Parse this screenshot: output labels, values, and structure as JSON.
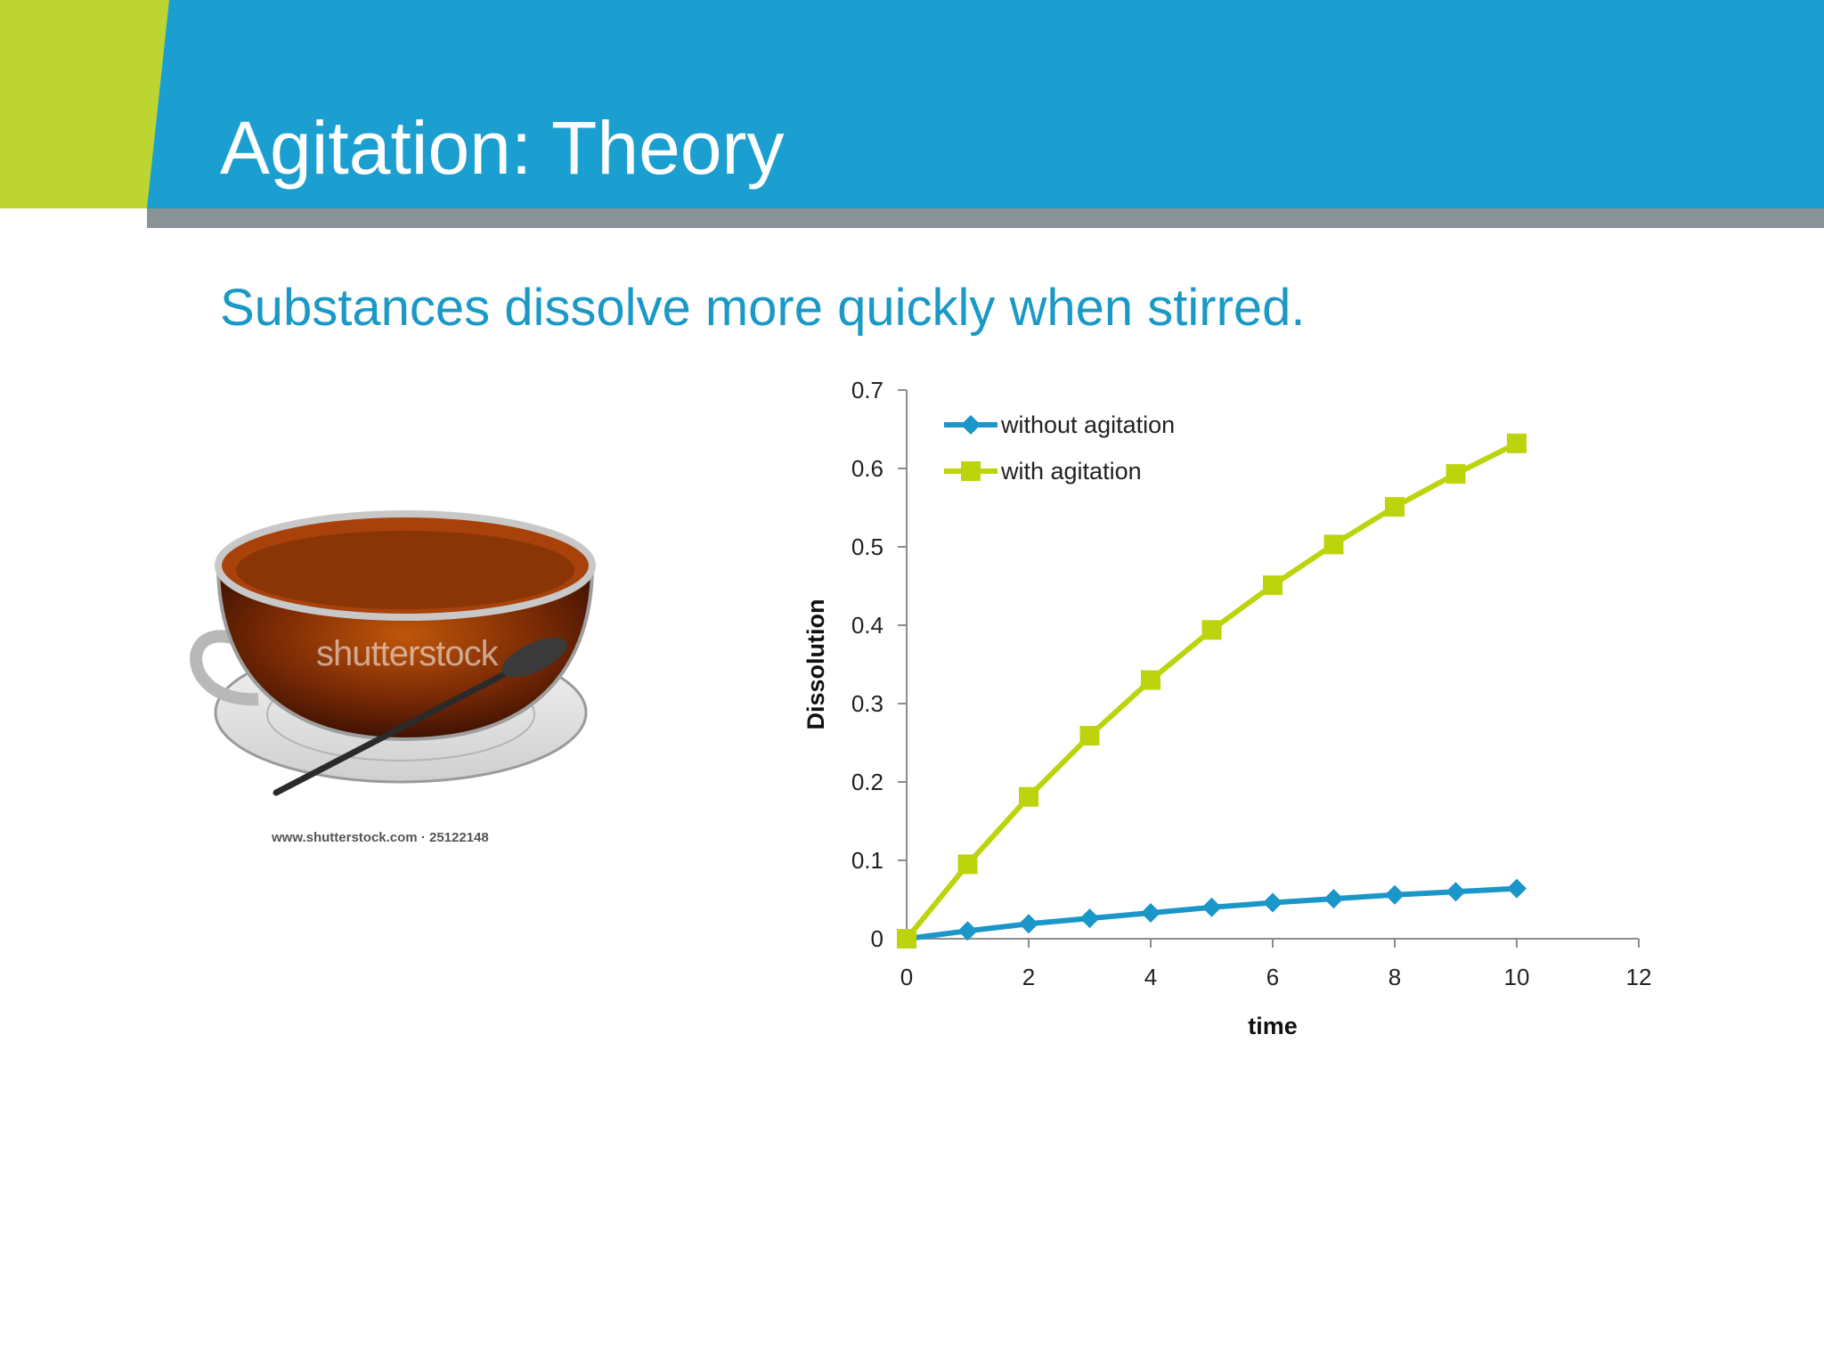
{
  "slide": {
    "title": "Agitation: Theory",
    "subtitle": "Substances dissolve more quickly when stirred."
  },
  "image": {
    "description_icon": "teacup-with-spoon-photo",
    "watermark": "shutterstock",
    "caption": "www.shutterstock.com · 25122148"
  },
  "colors": {
    "header_blue": "#1a9fd0",
    "accent_green": "#bcd531",
    "header_shadow": "#8a9396",
    "subtitle_blue": "#1a99c6",
    "series_blue": "#1a96c9",
    "series_green": "#bcd40c"
  },
  "chart_data": {
    "type": "line",
    "title": "",
    "xlabel": "time",
    "ylabel": "Dissolution",
    "xlim": [
      0,
      12
    ],
    "ylim": [
      0,
      0.7
    ],
    "x_ticks": [
      0,
      2,
      4,
      6,
      8,
      10,
      12
    ],
    "y_ticks": [
      0,
      0.1,
      0.2,
      0.3,
      0.4,
      0.5,
      0.6,
      0.7
    ],
    "legend_position": "top-left",
    "grid": false,
    "series": [
      {
        "name": "without agitation",
        "marker": "diamond",
        "color": "#1a96c9",
        "x": [
          0,
          1,
          2,
          3,
          4,
          5,
          6,
          7,
          8,
          9,
          10
        ],
        "y": [
          0,
          0.01,
          0.019,
          0.026,
          0.033,
          0.04,
          0.046,
          0.051,
          0.056,
          0.06,
          0.064
        ]
      },
      {
        "name": "with agitation",
        "marker": "square",
        "color": "#bcd40c",
        "x": [
          0,
          1,
          2,
          3,
          4,
          5,
          6,
          7,
          8,
          9,
          10
        ],
        "y": [
          0,
          0.095,
          0.181,
          0.259,
          0.33,
          0.394,
          0.451,
          0.503,
          0.551,
          0.593,
          0.632
        ]
      }
    ]
  }
}
